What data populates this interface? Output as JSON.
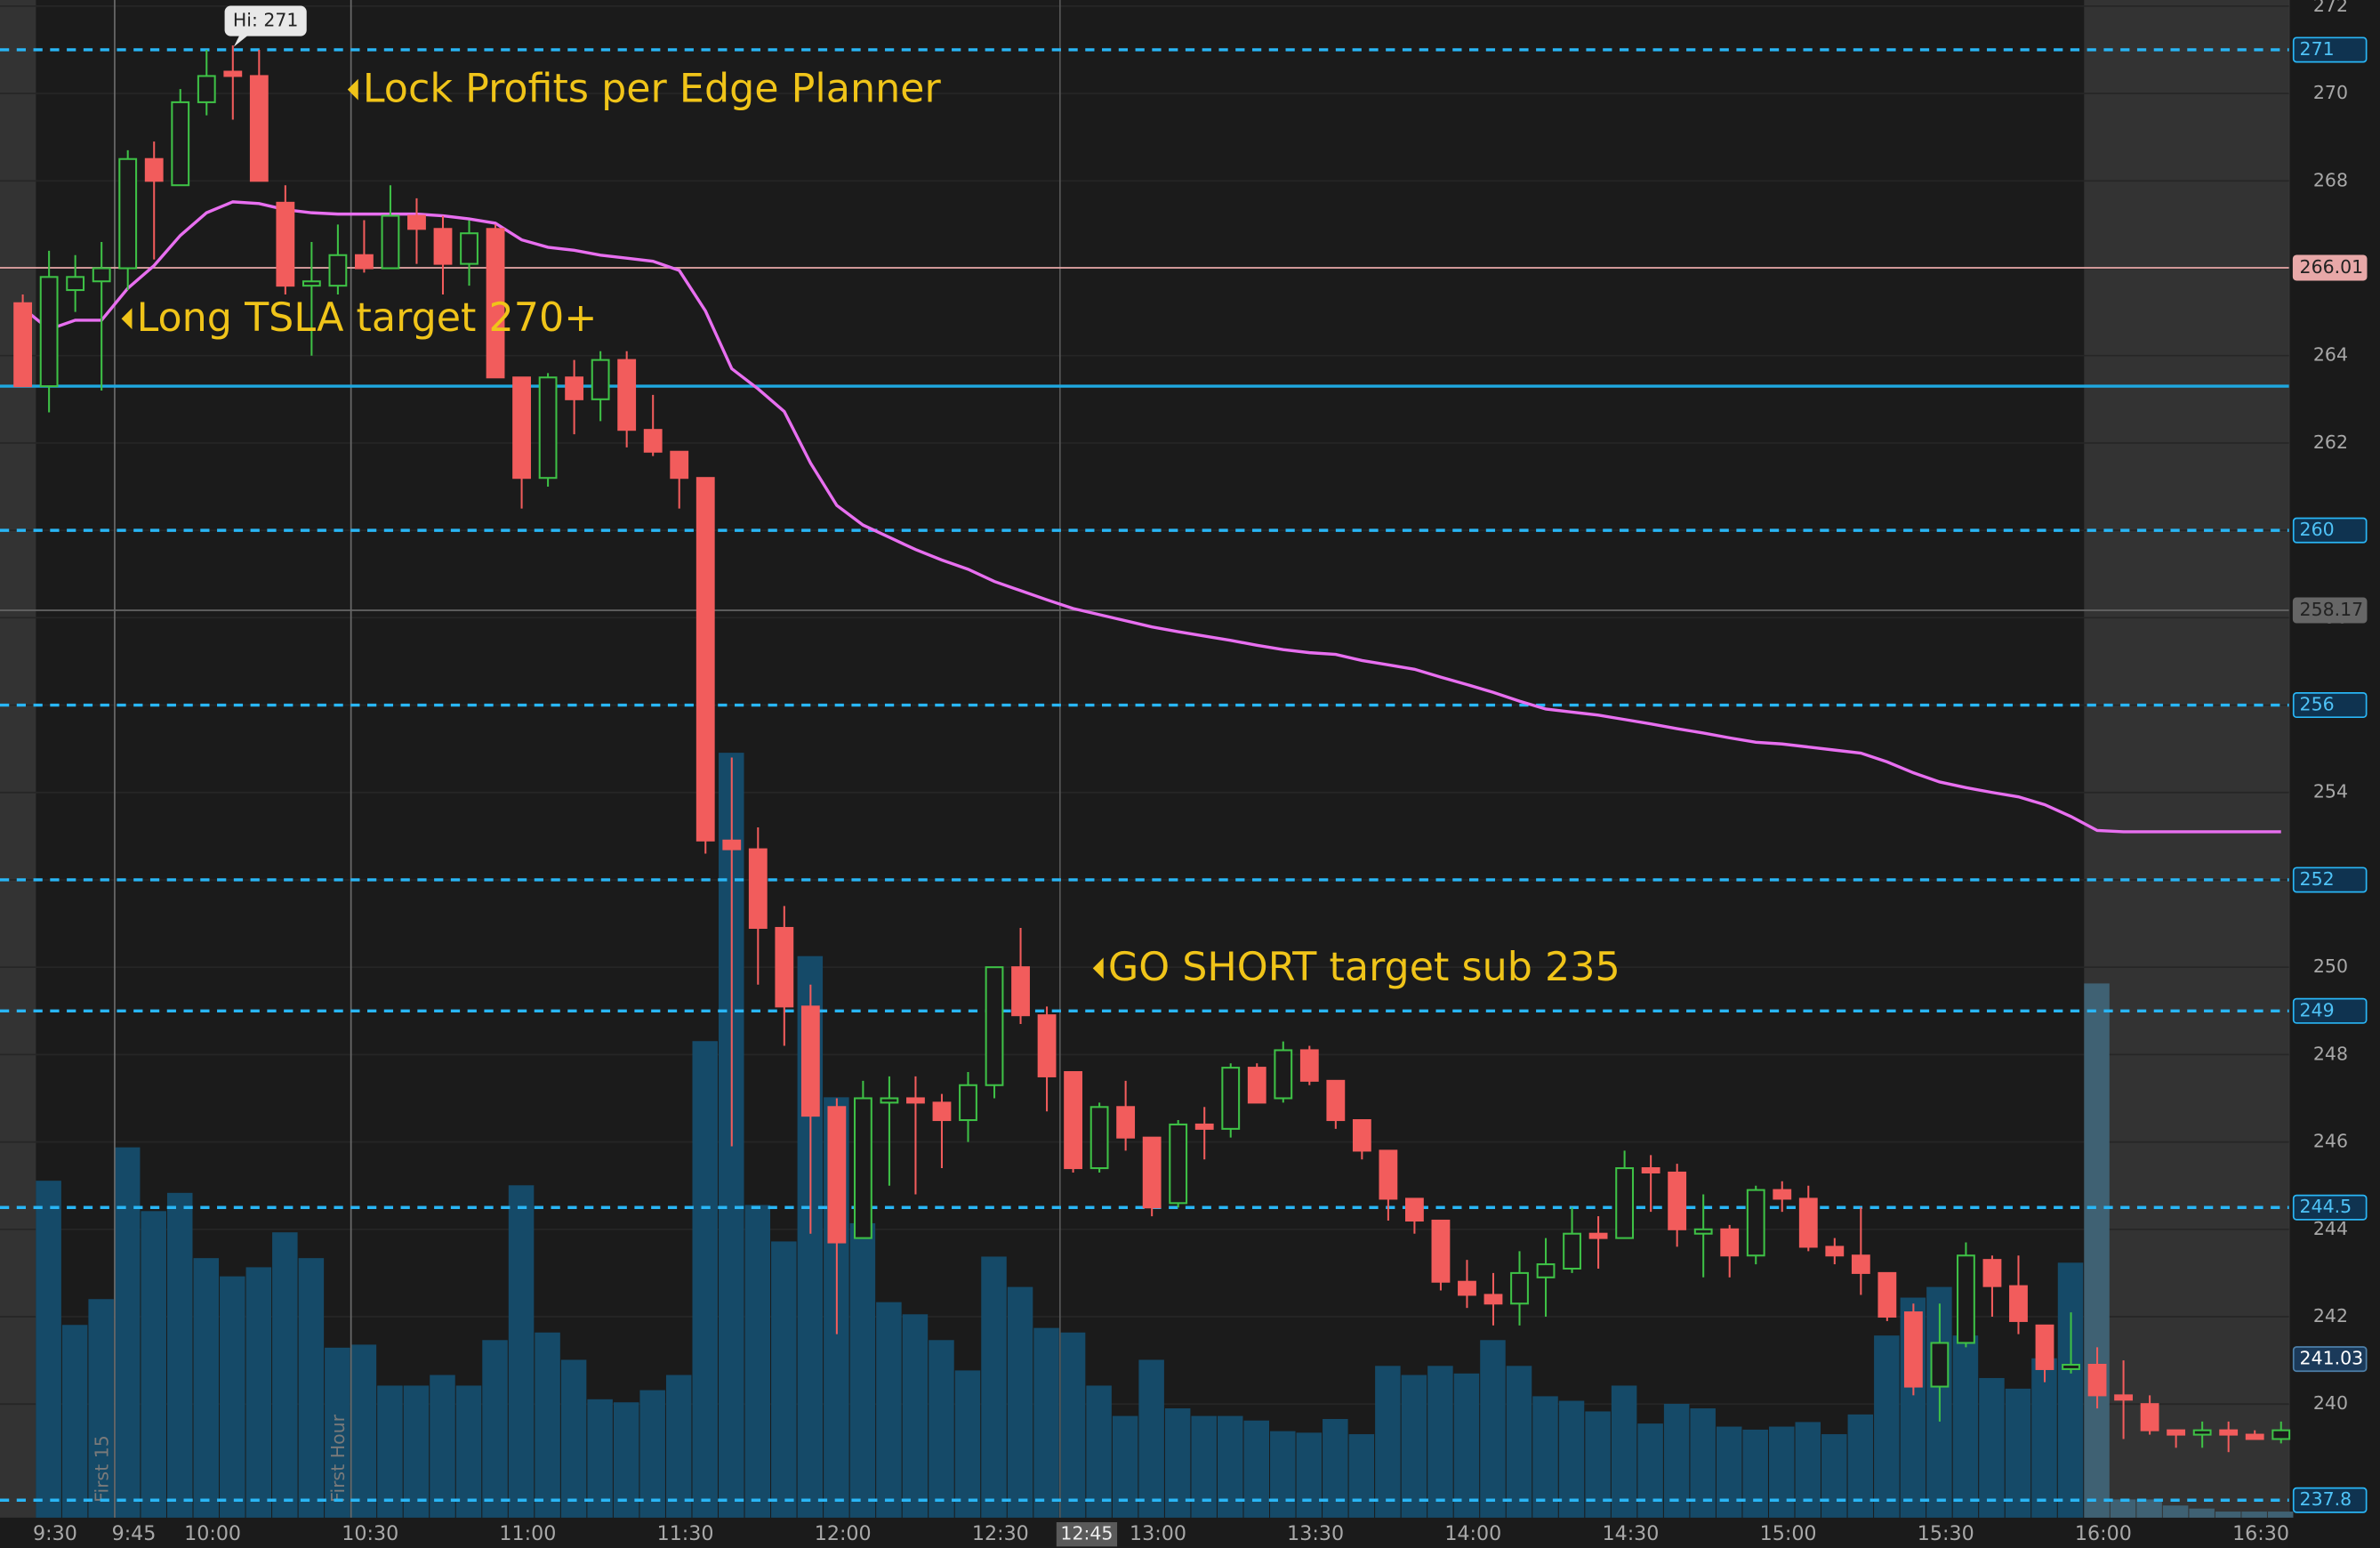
{
  "chart_data": {
    "type": "candlestick",
    "categories": [
      null,
      "9:30",
      null,
      null,
      "9:45",
      null,
      null,
      "10:00",
      null,
      null,
      null,
      null,
      null,
      "10:30",
      null,
      null,
      null,
      null,
      null,
      "11:00",
      null,
      null,
      null,
      null,
      null,
      "11:30",
      null,
      null,
      null,
      null,
      null,
      "12:00",
      null,
      null,
      null,
      null,
      null,
      "12:30",
      null,
      null,
      "12:45",
      null,
      null,
      "13:00",
      null,
      null,
      null,
      null,
      null,
      "13:30",
      null,
      null,
      null,
      null,
      null,
      "14:00",
      null,
      null,
      null,
      null,
      null,
      "14:30",
      null,
      null,
      null,
      null,
      null,
      "15:00",
      null,
      null,
      null,
      null,
      null,
      "15:30",
      null,
      null,
      null,
      null,
      null,
      "16:00",
      null,
      null,
      null,
      null,
      null,
      "16:30",
      null
    ],
    "open": [
      265.2,
      263.3,
      265.5,
      265.7,
      266.0,
      268.5,
      267.9,
      269.8,
      270.5,
      270.4,
      267.5,
      265.6,
      265.6,
      266.3,
      266.0,
      267.2,
      266.9,
      266.1,
      266.9,
      263.5,
      261.2,
      263.5,
      263.0,
      263.9,
      262.3,
      261.8,
      261.2,
      252.9,
      252.7,
      250.9,
      249.1,
      246.8,
      243.8,
      246.9,
      247.0,
      246.9,
      246.5,
      247.3,
      250.0,
      248.9,
      247.6,
      245.4,
      246.8,
      246.1,
      244.6,
      246.4,
      246.3,
      247.7,
      247.0,
      248.1,
      247.4,
      246.5,
      245.8,
      244.7,
      244.2,
      242.8,
      242.5,
      242.3,
      242.9,
      243.1,
      243.9,
      243.8,
      245.4,
      245.3,
      243.9,
      244.0,
      243.4,
      244.9,
      244.7,
      243.6,
      243.4,
      243.0,
      242.1,
      240.4,
      241.4,
      243.3,
      242.7,
      241.8,
      240.8,
      240.9,
      240.2,
      240.0,
      239.4,
      239.3,
      239.4,
      239.3,
      239.2
    ],
    "high": [
      265.4,
      266.4,
      266.3,
      266.6,
      268.7,
      268.9,
      270.1,
      271.0,
      271.1,
      271.0,
      267.9,
      266.6,
      267.0,
      267.1,
      267.9,
      267.6,
      267.2,
      267.1,
      267.0,
      263.5,
      263.6,
      263.9,
      264.1,
      264.1,
      263.1,
      261.8,
      261.2,
      254.8,
      253.2,
      251.4,
      249.6,
      247.0,
      247.4,
      247.5,
      247.5,
      247.1,
      247.6,
      250.0,
      250.9,
      249.1,
      247.6,
      246.9,
      247.4,
      246.1,
      246.5,
      246.8,
      247.8,
      247.8,
      248.3,
      248.2,
      247.4,
      246.5,
      245.8,
      244.7,
      244.2,
      243.3,
      243.0,
      243.5,
      243.8,
      244.5,
      244.3,
      245.8,
      245.7,
      245.5,
      244.8,
      244.1,
      245.0,
      245.1,
      245.0,
      243.8,
      244.5,
      243.0,
      242.3,
      242.3,
      243.7,
      243.4,
      243.4,
      241.8,
      242.1,
      241.3,
      241.0,
      240.2,
      239.4,
      239.6,
      239.6,
      239.4,
      239.6
    ],
    "low": [
      263.3,
      262.7,
      265.0,
      263.2,
      265.5,
      266.2,
      267.9,
      269.5,
      269.4,
      268.0,
      265.4,
      264.0,
      265.4,
      265.9,
      266.0,
      266.1,
      265.4,
      265.6,
      263.5,
      260.5,
      261.0,
      262.2,
      262.5,
      261.9,
      261.7,
      260.5,
      252.6,
      245.9,
      249.6,
      248.2,
      243.9,
      241.6,
      243.8,
      245.0,
      244.8,
      245.4,
      246.0,
      247.0,
      248.7,
      246.7,
      245.3,
      245.3,
      245.8,
      244.3,
      244.5,
      245.6,
      246.1,
      246.9,
      246.9,
      247.3,
      246.3,
      245.6,
      244.2,
      243.9,
      242.6,
      242.2,
      241.8,
      241.8,
      242.0,
      243.0,
      243.1,
      243.8,
      244.4,
      243.6,
      242.9,
      242.9,
      243.2,
      244.4,
      243.5,
      243.2,
      242.5,
      241.9,
      240.2,
      239.6,
      241.3,
      242.0,
      241.6,
      240.5,
      240.7,
      239.9,
      239.2,
      239.3,
      239.0,
      239.0,
      238.9,
      239.2,
      239.1
    ],
    "close": [
      263.3,
      265.8,
      265.8,
      266.0,
      268.5,
      268.0,
      269.8,
      270.4,
      270.4,
      268.0,
      265.6,
      265.7,
      266.3,
      266.0,
      267.2,
      266.9,
      266.1,
      266.8,
      263.5,
      261.2,
      263.5,
      263.0,
      263.9,
      262.3,
      261.8,
      261.2,
      252.9,
      252.7,
      250.9,
      249.1,
      246.6,
      243.7,
      247.0,
      247.0,
      246.9,
      246.5,
      247.3,
      250.0,
      248.9,
      247.5,
      245.4,
      246.8,
      246.1,
      244.5,
      246.4,
      246.3,
      247.7,
      246.9,
      248.1,
      247.4,
      246.5,
      245.8,
      244.7,
      244.2,
      242.8,
      242.5,
      242.3,
      243.0,
      243.2,
      243.9,
      243.8,
      245.4,
      245.3,
      244.0,
      244.0,
      243.4,
      244.9,
      244.7,
      243.6,
      243.4,
      243.0,
      242.0,
      240.4,
      241.4,
      243.4,
      242.7,
      241.9,
      240.8,
      240.9,
      240.2,
      240.1,
      239.4,
      239.3,
      239.4,
      239.3,
      239.2,
      239.4
    ],
    "volume": [
      null,
      222,
      127,
      144,
      244,
      202,
      214,
      171,
      159,
      165,
      188,
      171,
      112,
      114,
      87,
      87,
      94,
      87,
      117,
      219,
      122,
      104,
      78,
      76,
      84,
      94,
      314,
      504,
      206,
      182,
      370,
      277,
      194,
      142,
      134,
      117,
      97,
      172,
      152,
      125,
      122,
      87,
      67,
      104,
      72,
      67,
      67,
      64,
      57,
      56,
      65,
      55,
      100,
      94,
      100,
      95,
      117,
      100,
      80,
      77,
      70,
      87,
      62,
      75,
      72,
      60,
      58,
      60,
      63,
      55,
      68,
      120,
      145,
      152,
      120,
      92,
      85,
      105,
      168,
      352,
      12,
      12,
      8,
      6,
      4,
      4,
      4
    ],
    "vwap": [
      265.09,
      264.6,
      264.81,
      264.81,
      265.54,
      266.06,
      266.75,
      267.27,
      267.52,
      267.48,
      267.34,
      267.27,
      267.24,
      267.24,
      267.24,
      267.24,
      267.2,
      267.13,
      267.03,
      266.65,
      266.48,
      266.41,
      266.3,
      266.23,
      266.16,
      265.95,
      265.02,
      263.7,
      263.24,
      262.72,
      261.54,
      260.57,
      260.12,
      259.84,
      259.56,
      259.32,
      259.11,
      258.83,
      258.62,
      258.41,
      258.21,
      258.07,
      257.93,
      257.79,
      257.68,
      257.58,
      257.48,
      257.37,
      257.27,
      257.2,
      257.16,
      257.02,
      256.92,
      256.82,
      256.64,
      256.47,
      256.29,
      256.09,
      255.91,
      255.84,
      255.77,
      255.67,
      255.57,
      255.46,
      255.36,
      255.25,
      255.15,
      255.11,
      255.04,
      254.97,
      254.9,
      254.7,
      254.45,
      254.24,
      254.11,
      254.0,
      253.9,
      253.72,
      253.45,
      253.13,
      253.1,
      253.1,
      253.1,
      253.1,
      253.1,
      253.1,
      253.1
    ],
    "up_color": "#3ec146",
    "down_color": "#f25c5c",
    "volume_color": "#154a68",
    "extended_volume_color": "#3f6173",
    "vwap_color": "#e86ff0",
    "ylim": [
      237.4,
      272.14
    ],
    "yticks": [
      240,
      242,
      244,
      246,
      248,
      250,
      252,
      254,
      256,
      258,
      260,
      262,
      264,
      266,
      268,
      270,
      272
    ],
    "y2lim": [
      0,
      1000
    ],
    "grid": true,
    "regular_hours": [
      1,
      78
    ],
    "levels": [
      {
        "value": 271,
        "style": "dashed",
        "color": "#29b6f6",
        "tagged": true
      },
      {
        "value": 266.01,
        "style": "thin",
        "color": "#e8a8a8",
        "tagged": true
      },
      {
        "value": 263.3,
        "style": "solid",
        "color": "#1fa8e0",
        "tagged": false
      },
      {
        "value": 260,
        "style": "dashed",
        "color": "#29b6f6",
        "tagged": true
      },
      {
        "value": 258.17,
        "style": "thin",
        "color": "#666666",
        "tagged": true
      },
      {
        "value": 256,
        "style": "dashed",
        "color": "#29b6f6",
        "tagged": true
      },
      {
        "value": 252,
        "style": "dashed",
        "color": "#29b6f6",
        "tagged": true
      },
      {
        "value": 249,
        "style": "dashed",
        "color": "#29b6f6",
        "tagged": true
      },
      {
        "value": 244.5,
        "style": "dashed",
        "color": "#29b6f6",
        "tagged": true
      },
      {
        "value": 241.03,
        "style": "last",
        "color": "#1b3a5a",
        "tagged": true
      },
      {
        "value": 237.8,
        "style": "dashed",
        "color": "#29b6f6",
        "tagged": true
      }
    ],
    "high_marker": {
      "label": "Hi: 271",
      "value": 271
    },
    "markers": [
      {
        "index": 4,
        "label": "First 15"
      },
      {
        "index": 13,
        "label": "First Hour"
      }
    ],
    "cursor_index": 40,
    "annotations": [
      "Lock Profits per Edge Planner",
      "Long TSLA target 270+",
      "GO SHORT target sub 235"
    ]
  }
}
